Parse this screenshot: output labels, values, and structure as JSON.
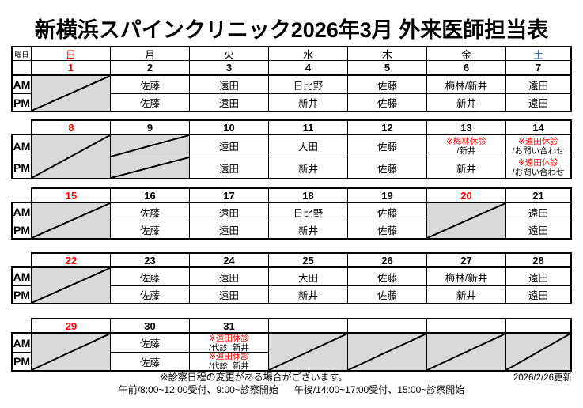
{
  "title": "新横浜スパインクリニック2026年3月 外来医師担当表",
  "colors": {
    "sunday_red": "#FF0000",
    "saturday_blue": "#4472C4",
    "closed_gray": "#D9D9D9",
    "notice_red": "#FF0000"
  },
  "weekday_row": {
    "corner": "曜日",
    "days": [
      {
        "key": "sun",
        "label": "日",
        "color": "#FF0000"
      },
      {
        "key": "mon",
        "label": "月",
        "color": "#000000"
      },
      {
        "key": "tue",
        "label": "火",
        "color": "#000000"
      },
      {
        "key": "wed",
        "label": "水",
        "color": "#000000"
      },
      {
        "key": "thu",
        "label": "木",
        "color": "#000000"
      },
      {
        "key": "fri",
        "label": "金",
        "color": "#000000"
      },
      {
        "key": "sat",
        "label": "土",
        "color": "#4472C4"
      }
    ]
  },
  "row_labels": {
    "am": "AM",
    "pm": "PM"
  },
  "weeks": [
    {
      "dates": [
        {
          "d": "1",
          "red": true
        },
        {
          "d": "2"
        },
        {
          "d": "3"
        },
        {
          "d": "4"
        },
        {
          "d": "5"
        },
        {
          "d": "6"
        },
        {
          "d": "7"
        }
      ],
      "am": [
        {
          "closed": "span"
        },
        {
          "text": "佐藤"
        },
        {
          "text": "遠田"
        },
        {
          "text": "日比野"
        },
        {
          "text": "佐藤"
        },
        {
          "text": "梅林/新井"
        },
        {
          "text": "遠田"
        }
      ],
      "pm": [
        {
          "spanned": true
        },
        {
          "text": "佐藤"
        },
        {
          "text": "遠田"
        },
        {
          "text": "新井"
        },
        {
          "text": "佐藤"
        },
        {
          "text": "新井"
        },
        {
          "text": "遠田"
        }
      ]
    },
    {
      "dates": [
        {
          "d": "8",
          "red": true
        },
        {
          "d": "9"
        },
        {
          "d": "10"
        },
        {
          "d": "11"
        },
        {
          "d": "12"
        },
        {
          "d": "13"
        },
        {
          "d": "14"
        }
      ],
      "am": [
        {
          "closed": "span"
        },
        {
          "closed": "single"
        },
        {
          "text": "遠田"
        },
        {
          "text": "大田"
        },
        {
          "text": "佐藤"
        },
        {
          "note": "※梅林休診",
          "text": "/新井"
        },
        {
          "note": "※遠田休診",
          "text": "/お問い合わせ"
        }
      ],
      "pm": [
        {
          "spanned": true
        },
        {
          "closed": "single"
        },
        {
          "text": "遠田"
        },
        {
          "text": "新井"
        },
        {
          "text": "佐藤"
        },
        {
          "text": "新井"
        },
        {
          "note": "※遠田休診",
          "text": "/お問い合わせ"
        }
      ]
    },
    {
      "dates": [
        {
          "d": "15",
          "red": true
        },
        {
          "d": "16"
        },
        {
          "d": "17"
        },
        {
          "d": "18"
        },
        {
          "d": "19"
        },
        {
          "d": "20",
          "red": true
        },
        {
          "d": "21"
        }
      ],
      "am": [
        {
          "closed": "span"
        },
        {
          "text": "佐藤"
        },
        {
          "text": "遠田"
        },
        {
          "text": "日比野"
        },
        {
          "text": "佐藤"
        },
        {
          "closed": "span"
        },
        {
          "text": "遠田"
        }
      ],
      "pm": [
        {
          "spanned": true
        },
        {
          "text": "佐藤"
        },
        {
          "text": "遠田"
        },
        {
          "text": "新井"
        },
        {
          "text": "佐藤"
        },
        {
          "spanned": true
        },
        {
          "text": "遠田"
        }
      ]
    },
    {
      "dates": [
        {
          "d": "22",
          "red": true
        },
        {
          "d": "23"
        },
        {
          "d": "24"
        },
        {
          "d": "25"
        },
        {
          "d": "26"
        },
        {
          "d": "27"
        },
        {
          "d": "28"
        }
      ],
      "am": [
        {
          "closed": "span"
        },
        {
          "text": "佐藤"
        },
        {
          "text": "遠田"
        },
        {
          "text": "大田"
        },
        {
          "text": "佐藤"
        },
        {
          "text": "梅林/新井"
        },
        {
          "text": "遠田"
        }
      ],
      "pm": [
        {
          "spanned": true
        },
        {
          "text": "佐藤"
        },
        {
          "text": "遠田"
        },
        {
          "text": "新井"
        },
        {
          "text": "佐藤"
        },
        {
          "text": "新井"
        },
        {
          "text": "遠田"
        }
      ]
    },
    {
      "dates": [
        {
          "d": "29",
          "red": true
        },
        {
          "d": "30"
        },
        {
          "d": "31"
        },
        {
          "d": ""
        },
        {
          "d": ""
        },
        {
          "d": ""
        },
        {
          "d": ""
        }
      ],
      "am": [
        {
          "closed": "span"
        },
        {
          "text": "佐藤"
        },
        {
          "note": "※遠田休診",
          "text": "/代診  新井"
        },
        {
          "closed": "span"
        },
        {
          "closed": "span"
        },
        {
          "closed": "span"
        },
        {
          "closed": "span"
        }
      ],
      "pm": [
        {
          "spanned": true
        },
        {
          "text": "佐藤"
        },
        {
          "note": "※遠田休診",
          "text": "/代診  新井"
        },
        {
          "spanned": true
        },
        {
          "spanned": true
        },
        {
          "spanned": true
        },
        {
          "spanned": true
        }
      ]
    }
  ],
  "footer": {
    "note": "※診察日程の変更がある場合がございます。",
    "updated": "2026/2/26更新",
    "hours": "午前/8:00~12:00受付、9:00~診察開始      午後/14:00~17:00受付、15:00~診察開始"
  }
}
